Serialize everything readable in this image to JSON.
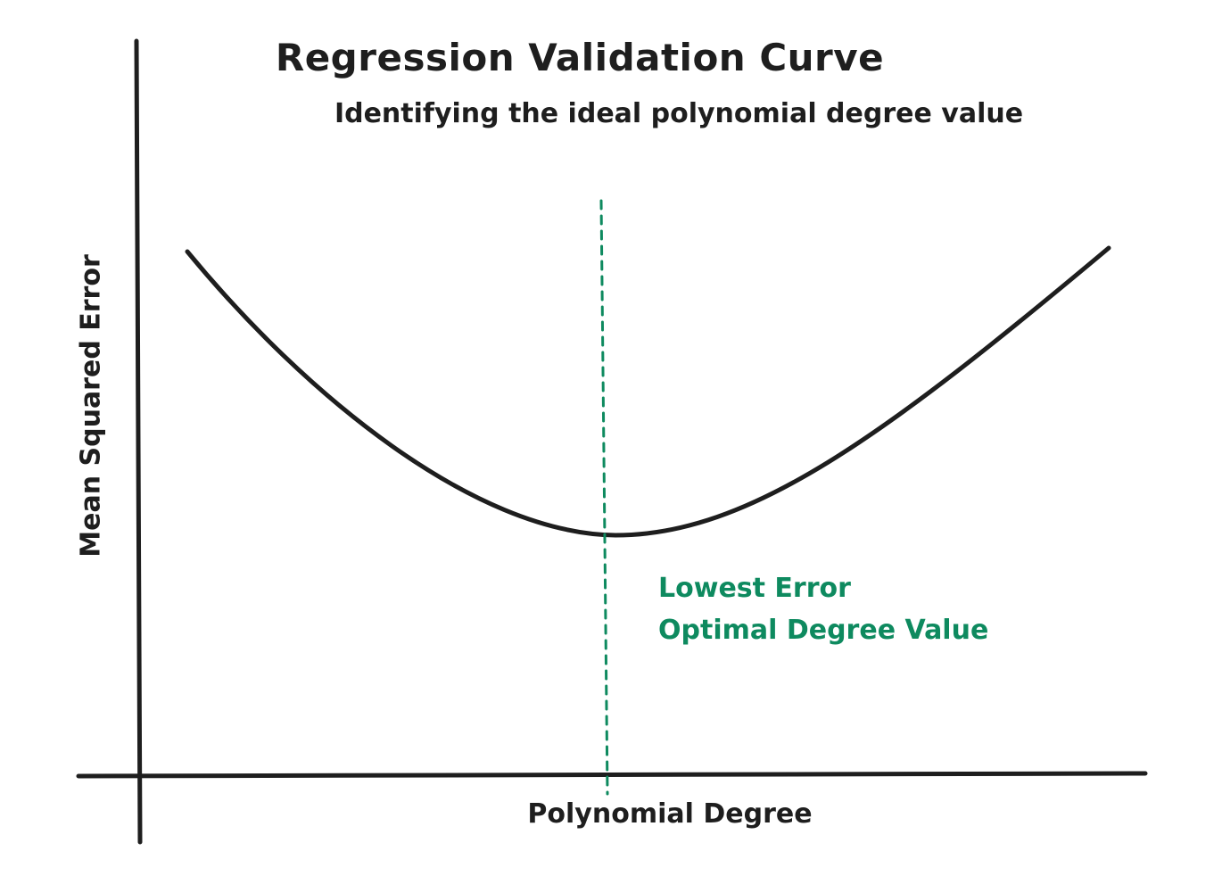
{
  "title": "Regression Validation Curve",
  "subtitle": "Identifying the ideal polynomial degree value",
  "axes": {
    "x_label": "Polynomial Degree",
    "y_label": "Mean Squared Error"
  },
  "annotation": {
    "line1": "Lowest Error",
    "line2": "Optimal Degree Value"
  },
  "colors": {
    "ink": "#1e1e1e",
    "highlight": "#0e8a5f"
  }
}
